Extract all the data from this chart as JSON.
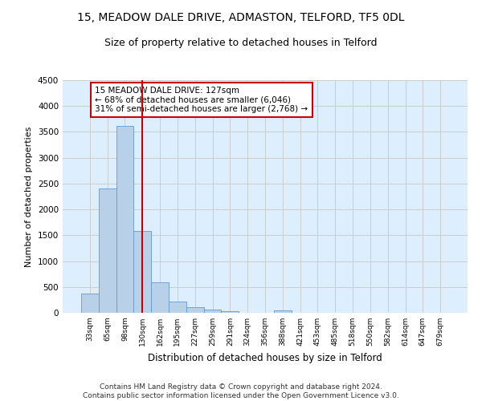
{
  "title1": "15, MEADOW DALE DRIVE, ADMASTON, TELFORD, TF5 0DL",
  "title2": "Size of property relative to detached houses in Telford",
  "xlabel": "Distribution of detached houses by size in Telford",
  "ylabel": "Number of detached properties",
  "categories": [
    "33sqm",
    "65sqm",
    "98sqm",
    "130sqm",
    "162sqm",
    "195sqm",
    "227sqm",
    "259sqm",
    "291sqm",
    "324sqm",
    "356sqm",
    "388sqm",
    "421sqm",
    "453sqm",
    "485sqm",
    "518sqm",
    "550sqm",
    "582sqm",
    "614sqm",
    "647sqm",
    "679sqm"
  ],
  "values": [
    370,
    2400,
    3620,
    1580,
    590,
    225,
    105,
    60,
    35,
    0,
    0,
    50,
    0,
    0,
    0,
    0,
    0,
    0,
    0,
    0,
    0
  ],
  "bar_color": "#b8d0e8",
  "bar_edge_color": "#6699cc",
  "vline_x": 3,
  "vline_color": "#cc0000",
  "annotation_text": "15 MEADOW DALE DRIVE: 127sqm\n← 68% of detached houses are smaller (6,046)\n31% of semi-detached houses are larger (2,768) →",
  "annotation_box_color": "#ffffff",
  "annotation_box_edge_color": "#cc0000",
  "ylim": [
    0,
    4500
  ],
  "yticks": [
    0,
    500,
    1000,
    1500,
    2000,
    2500,
    3000,
    3500,
    4000,
    4500
  ],
  "grid_color": "#cccccc",
  "background_color": "#ddeeff",
  "footer_text": "Contains HM Land Registry data © Crown copyright and database right 2024.\nContains public sector information licensed under the Open Government Licence v3.0.",
  "title1_fontsize": 10,
  "title2_fontsize": 9,
  "xlabel_fontsize": 8.5,
  "ylabel_fontsize": 8,
  "annotation_fontsize": 7.5,
  "footer_fontsize": 6.5
}
